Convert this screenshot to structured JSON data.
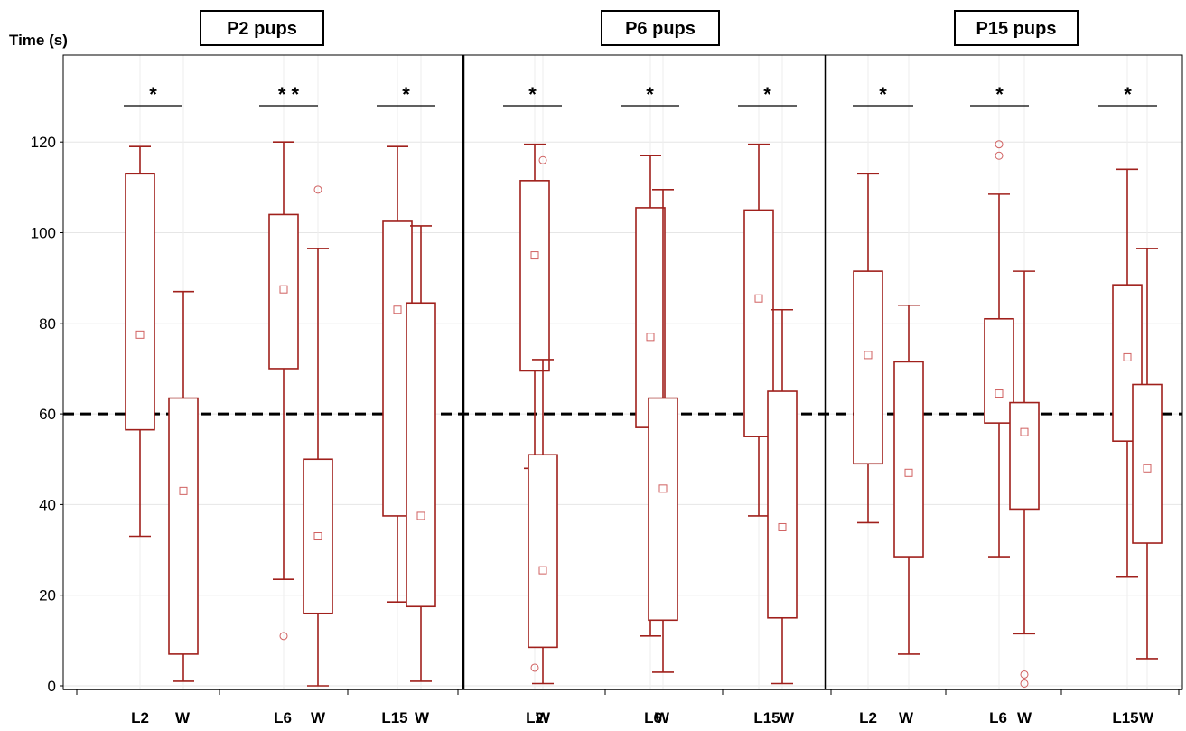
{
  "chart_data": {
    "type": "box",
    "ylabel": "Time (s)",
    "ylim": [
      0,
      140
    ],
    "yticks": [
      0,
      20,
      40,
      60,
      80,
      100,
      120
    ],
    "grid": true,
    "reference_line": 60,
    "colors": {
      "box": "#a0201c",
      "reference_line": "#000000"
    },
    "panels": [
      {
        "title": "P2 pups",
        "groups": [
          {
            "significance": "*",
            "boxes": [
              {
                "label": "L2",
                "whisker_low": 33,
                "q1": 56.5,
                "median": 77.5,
                "q3": 113,
                "whisker_high": 119,
                "outliers": []
              },
              {
                "label": "W",
                "whisker_low": 1,
                "q1": 7,
                "median": 43,
                "q3": 63.5,
                "whisker_high": 87,
                "outliers": []
              }
            ]
          },
          {
            "significance": "* *",
            "boxes": [
              {
                "label": "L6",
                "whisker_low": 23.5,
                "q1": 70,
                "median": 87.5,
                "q3": 104,
                "whisker_high": 120,
                "outliers": [
                  11
                ]
              },
              {
                "label": "W",
                "whisker_low": 0,
                "q1": 16,
                "median": 33,
                "q3": 50,
                "whisker_high": 96.5,
                "outliers": [
                  109.5
                ]
              }
            ]
          },
          {
            "significance": "*",
            "boxes": [
              {
                "label": "L15",
                "whisker_low": 18.5,
                "q1": 37.5,
                "median": 83,
                "q3": 102.5,
                "whisker_high": 119,
                "outliers": []
              },
              {
                "label": "W",
                "whisker_low": 1,
                "q1": 17.5,
                "median": 37.5,
                "q3": 84.5,
                "whisker_high": 101.5,
                "outliers": []
              }
            ]
          }
        ]
      },
      {
        "title": "P6 pups",
        "groups": [
          {
            "significance": "*",
            "boxes": [
              {
                "label": "L2",
                "whisker_low": 48,
                "q1": 69.5,
                "median": 95,
                "q3": 111.5,
                "whisker_high": 119.5,
                "outliers": [
                  4
                ]
              },
              {
                "label": "W",
                "whisker_low": 0.5,
                "q1": 8.5,
                "median": 25.5,
                "q3": 51,
                "whisker_high": 72,
                "outliers": [
                  116
                ]
              }
            ]
          },
          {
            "significance": "*",
            "boxes": [
              {
                "label": "L6",
                "whisker_low": 11,
                "q1": 57,
                "median": 77,
                "q3": 105.5,
                "whisker_high": 117,
                "outliers": []
              },
              {
                "label": "W",
                "whisker_low": 3,
                "q1": 14.5,
                "median": 43.5,
                "q3": 63.5,
                "whisker_high": 109.5,
                "outliers": []
              }
            ]
          },
          {
            "significance": "*",
            "boxes": [
              {
                "label": "L15",
                "whisker_low": 37.5,
                "q1": 55,
                "median": 85.5,
                "q3": 105,
                "whisker_high": 119.5,
                "outliers": []
              },
              {
                "label": "W",
                "whisker_low": 0.5,
                "q1": 15,
                "median": 35,
                "q3": 65,
                "whisker_high": 83,
                "outliers": []
              }
            ]
          }
        ]
      },
      {
        "title": "P15 pups",
        "groups": [
          {
            "significance": "*",
            "boxes": [
              {
                "label": "L2",
                "whisker_low": 36,
                "q1": 49,
                "median": 73,
                "q3": 91.5,
                "whisker_high": 113,
                "outliers": []
              },
              {
                "label": "W",
                "whisker_low": 7,
                "q1": 28.5,
                "median": 47,
                "q3": 71.5,
                "whisker_high": 84,
                "outliers": []
              }
            ]
          },
          {
            "significance": "*",
            "boxes": [
              {
                "label": "L6",
                "whisker_low": 28.5,
                "q1": 58,
                "median": 64.5,
                "q3": 81,
                "whisker_high": 108.5,
                "outliers": [
                  117,
                  119.5
                ]
              },
              {
                "label": "W",
                "whisker_low": 11.5,
                "q1": 39,
                "median": 56,
                "q3": 62.5,
                "whisker_high": 91.5,
                "outliers": [
                  2.5,
                  0.5
                ]
              }
            ]
          },
          {
            "significance": "*",
            "boxes": [
              {
                "label": "L15",
                "whisker_low": 24,
                "q1": 54,
                "median": 72.5,
                "q3": 88.5,
                "whisker_high": 114,
                "outliers": []
              },
              {
                "label": "W",
                "whisker_low": 6,
                "q1": 31.5,
                "median": 48,
                "q3": 66.5,
                "whisker_high": 96.5,
                "outliers": []
              }
            ]
          }
        ]
      }
    ]
  }
}
